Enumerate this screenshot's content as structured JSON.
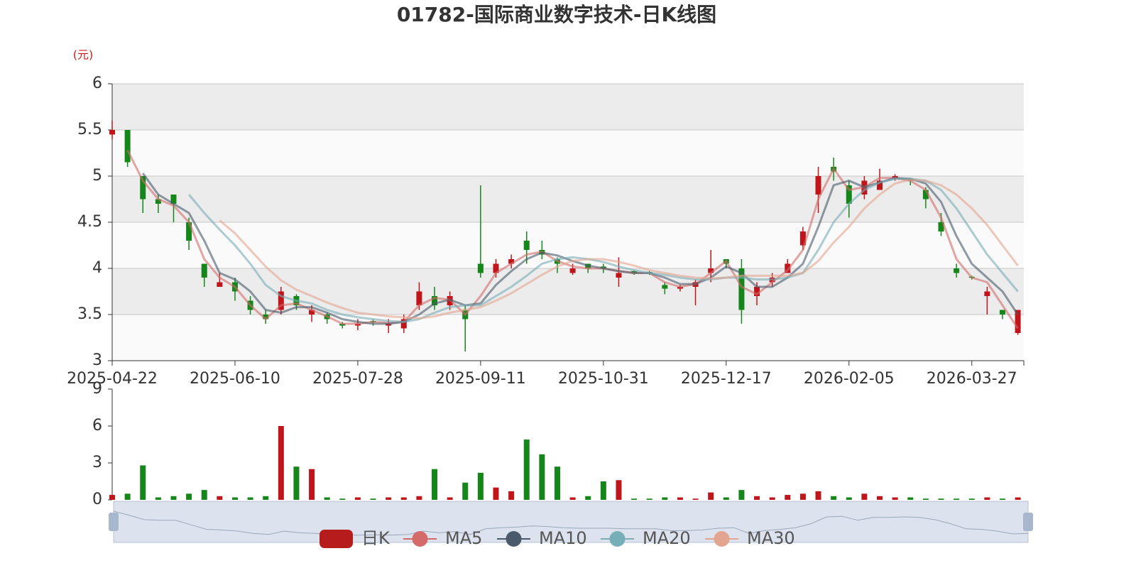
{
  "chart_data": {
    "type": "candlestick",
    "title": "01782-国际商业数字技术-日K线图",
    "y_unit": "(元)",
    "up_color": "#c0161b",
    "down_color": "#14861a",
    "grid": true,
    "ylim": [
      3,
      6
    ],
    "yticks": [
      3,
      3.5,
      4,
      4.5,
      5,
      5.5,
      6
    ],
    "categories": [
      "2025-04-22",
      null,
      null,
      null,
      null,
      null,
      null,
      null,
      "2025-06-10",
      null,
      null,
      null,
      null,
      null,
      null,
      null,
      "2025-07-28",
      null,
      null,
      null,
      null,
      null,
      null,
      null,
      "2025-09-11",
      null,
      null,
      null,
      null,
      null,
      null,
      null,
      "2025-10-31",
      null,
      null,
      null,
      null,
      null,
      null,
      null,
      "2025-12-17",
      null,
      null,
      null,
      null,
      null,
      null,
      null,
      "2026-02-05",
      null,
      null,
      null,
      null,
      null,
      null,
      null,
      "2026-03-27",
      null,
      null,
      null
    ],
    "series": [
      {
        "name": "日K",
        "color": "#b71c1c",
        "values": [
          [
            5.45,
            5.5,
            5.4,
            5.6
          ],
          [
            5.5,
            5.15,
            5.1,
            5.5
          ],
          [
            5.0,
            4.75,
            4.6,
            4.9
          ],
          [
            4.75,
            4.7,
            4.6,
            4.8
          ],
          [
            4.8,
            4.7,
            4.5,
            4.8
          ],
          [
            4.5,
            4.3,
            4.2,
            4.55
          ],
          [
            4.05,
            3.9,
            3.8,
            4.05
          ],
          [
            3.8,
            3.85,
            3.8,
            3.95
          ],
          [
            3.85,
            3.75,
            3.65,
            3.9
          ],
          [
            3.65,
            3.55,
            3.5,
            3.7
          ],
          [
            3.5,
            3.45,
            3.4,
            3.55
          ],
          [
            3.55,
            3.75,
            3.5,
            3.8
          ],
          [
            3.7,
            3.6,
            3.55,
            3.72
          ],
          [
            3.5,
            3.55,
            3.42,
            3.6
          ],
          [
            3.5,
            3.45,
            3.4,
            3.52
          ],
          [
            3.4,
            3.38,
            3.35,
            3.42
          ],
          [
            3.38,
            3.4,
            3.33,
            3.45
          ],
          [
            3.43,
            3.42,
            3.38,
            3.45
          ],
          [
            3.38,
            3.4,
            3.3,
            3.45
          ],
          [
            3.35,
            3.45,
            3.3,
            3.5
          ],
          [
            3.6,
            3.75,
            3.55,
            3.85
          ],
          [
            3.7,
            3.6,
            3.55,
            3.8
          ],
          [
            3.6,
            3.7,
            3.55,
            3.75
          ],
          [
            3.55,
            3.45,
            3.1,
            3.6
          ],
          [
            4.05,
            3.95,
            3.9,
            4.9
          ],
          [
            3.95,
            4.05,
            3.9,
            4.1
          ],
          [
            4.05,
            4.1,
            4.0,
            4.15
          ],
          [
            4.3,
            4.2,
            4.05,
            4.4
          ],
          [
            4.2,
            4.15,
            4.1,
            4.3
          ],
          [
            4.1,
            4.05,
            3.95,
            4.12
          ],
          [
            3.95,
            4.0,
            3.93,
            4.05
          ],
          [
            4.05,
            4.0,
            3.95,
            4.05
          ],
          [
            4.02,
            4.0,
            3.95,
            4.05
          ],
          [
            3.9,
            3.95,
            3.8,
            4.12
          ],
          [
            3.97,
            3.95,
            3.93,
            3.98
          ],
          [
            3.96,
            3.95,
            3.93,
            3.97
          ],
          [
            3.82,
            3.78,
            3.72,
            3.85
          ],
          [
            3.78,
            3.8,
            3.75,
            3.82
          ],
          [
            3.8,
            3.85,
            3.6,
            3.88
          ],
          [
            3.95,
            4.0,
            3.85,
            4.2
          ],
          [
            4.1,
            4.05,
            4.0,
            4.1
          ],
          [
            4.0,
            3.55,
            3.4,
            4.1
          ],
          [
            3.7,
            3.8,
            3.6,
            3.85
          ],
          [
            3.85,
            3.9,
            3.8,
            3.95
          ],
          [
            3.95,
            4.05,
            3.95,
            4.1
          ],
          [
            4.25,
            4.4,
            4.2,
            4.45
          ],
          [
            4.8,
            5.0,
            4.6,
            5.1
          ],
          [
            5.1,
            5.05,
            4.95,
            5.2
          ],
          [
            4.9,
            4.7,
            4.55,
            4.95
          ],
          [
            4.8,
            4.95,
            4.75,
            5.0
          ],
          [
            4.85,
            4.95,
            4.85,
            5.08
          ],
          [
            4.98,
            5.0,
            4.95,
            5.02
          ],
          [
            4.97,
            4.95,
            4.9,
            4.98
          ],
          [
            4.85,
            4.75,
            4.65,
            4.88
          ],
          [
            4.5,
            4.4,
            4.35,
            4.6
          ],
          [
            4.0,
            3.95,
            3.9,
            4.05
          ],
          [
            3.91,
            3.9,
            3.88,
            3.92
          ],
          [
            3.7,
            3.75,
            3.5,
            3.8
          ],
          [
            3.55,
            3.5,
            3.45,
            3.55
          ],
          [
            3.3,
            3.55,
            3.28,
            3.55
          ]
        ]
      },
      {
        "name": "MA5",
        "color": "#d46a6a",
        "values": [
          null,
          5.28,
          4.95,
          4.75,
          4.68,
          4.5,
          4.1,
          3.9,
          3.8,
          3.6,
          3.45,
          3.6,
          3.62,
          3.55,
          3.48,
          3.4,
          3.4,
          3.42,
          3.41,
          3.42,
          3.6,
          3.68,
          3.66,
          3.5,
          3.7,
          3.95,
          4.05,
          4.15,
          4.18,
          4.08,
          4.02,
          4.0,
          4.0,
          3.97,
          3.95,
          3.95,
          3.85,
          3.8,
          3.83,
          3.95,
          4.08,
          3.8,
          3.72,
          3.85,
          3.98,
          4.2,
          4.75,
          5.08,
          4.85,
          4.88,
          4.98,
          4.98,
          4.95,
          4.85,
          4.55,
          4.1,
          3.9,
          3.85,
          3.6,
          3.35
        ]
      },
      {
        "name": "MA10",
        "color": "#4a5a6b",
        "values": [
          null,
          null,
          5.03,
          4.8,
          4.7,
          4.6,
          4.3,
          3.95,
          3.88,
          3.75,
          3.55,
          3.52,
          3.58,
          3.58,
          3.52,
          3.45,
          3.42,
          3.4,
          3.4,
          3.42,
          3.5,
          3.62,
          3.66,
          3.6,
          3.62,
          3.82,
          3.97,
          4.1,
          4.17,
          4.14,
          4.08,
          4.03,
          4.0,
          3.97,
          3.95,
          3.95,
          3.9,
          3.83,
          3.83,
          3.9,
          4.02,
          3.95,
          3.8,
          3.8,
          3.9,
          4.05,
          4.45,
          4.9,
          4.95,
          4.88,
          4.93,
          4.98,
          4.97,
          4.92,
          4.72,
          4.35,
          4.05,
          3.9,
          3.75,
          3.5
        ]
      },
      {
        "name": "MA20",
        "color": "#78aeb8",
        "values": [
          null,
          null,
          null,
          null,
          null,
          4.8,
          4.6,
          4.42,
          4.25,
          4.05,
          3.82,
          3.7,
          3.65,
          3.62,
          3.55,
          3.5,
          3.47,
          3.45,
          3.43,
          3.42,
          3.45,
          3.52,
          3.58,
          3.6,
          3.6,
          3.7,
          3.8,
          3.92,
          4.05,
          4.1,
          4.12,
          4.1,
          4.07,
          4.02,
          3.98,
          3.95,
          3.93,
          3.9,
          3.88,
          3.88,
          3.9,
          3.9,
          3.88,
          3.88,
          3.9,
          3.95,
          4.2,
          4.5,
          4.7,
          4.85,
          4.93,
          4.97,
          4.97,
          4.95,
          4.85,
          4.65,
          4.4,
          4.15,
          3.95,
          3.75
        ]
      },
      {
        "name": "MA30",
        "color": "#e3a590",
        "values": [
          null,
          null,
          null,
          null,
          null,
          null,
          null,
          4.52,
          4.38,
          4.2,
          4.02,
          3.87,
          3.77,
          3.7,
          3.63,
          3.57,
          3.52,
          3.5,
          3.48,
          3.47,
          3.46,
          3.48,
          3.52,
          3.55,
          3.58,
          3.65,
          3.73,
          3.83,
          3.93,
          4.02,
          4.08,
          4.1,
          4.1,
          4.07,
          4.03,
          3.98,
          3.95,
          3.92,
          3.9,
          3.89,
          3.9,
          3.92,
          3.92,
          3.92,
          3.92,
          3.95,
          4.08,
          4.28,
          4.45,
          4.65,
          4.8,
          4.92,
          4.96,
          4.95,
          4.9,
          4.8,
          4.65,
          4.47,
          4.25,
          4.03
        ]
      }
    ],
    "volume": {
      "ylim": [
        0,
        9
      ],
      "yticks": [
        0,
        3,
        6,
        9
      ],
      "values": [
        0.4,
        0.5,
        2.8,
        0.2,
        0.3,
        0.5,
        0.8,
        0.3,
        0.2,
        0.2,
        0.3,
        6.0,
        2.7,
        2.5,
        0.2,
        0.1,
        0.2,
        0.1,
        0.2,
        0.2,
        0.3,
        2.5,
        0.2,
        1.4,
        2.2,
        1.0,
        0.7,
        4.9,
        3.7,
        2.7,
        0.2,
        0.3,
        1.5,
        1.6,
        0.1,
        0.1,
        0.2,
        0.2,
        0.1,
        0.6,
        0.2,
        0.8,
        0.3,
        0.2,
        0.4,
        0.5,
        0.7,
        0.3,
        0.2,
        0.5,
        0.3,
        0.2,
        0.2,
        0.1,
        0.1,
        0.1,
        0.1,
        0.2,
        0.1,
        0.2
      ]
    }
  }
}
